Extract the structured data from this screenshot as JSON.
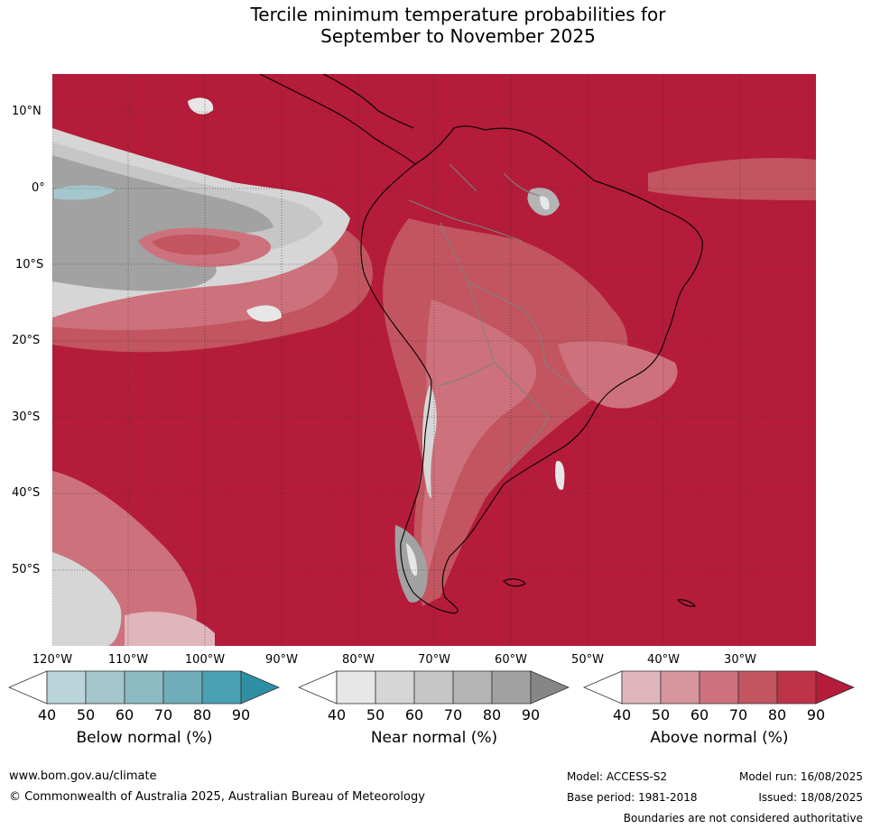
{
  "title_line1": "Tercile minimum temperature probabilities for",
  "title_line2": "September to November 2025",
  "colors": {
    "above": [
      "#dfb6bb",
      "#d7959d",
      "#cd727d",
      "#c2555f",
      "#bd3347",
      "#b41c3a"
    ],
    "near": [
      "#e7e7e7",
      "#d6d6d6",
      "#c6c6c6",
      "#b4b4b4",
      "#a2a2a2",
      "#868686"
    ],
    "below": [
      "#bad5da",
      "#a5c6cc",
      "#8cbac2",
      "#6fadb9",
      "#4aa1b3",
      "#2e8fa4"
    ],
    "land_outline": "#000000",
    "border_outline": "#808080"
  },
  "lat_ticks": [
    "10°N",
    "0°",
    "10°S",
    "20°S",
    "30°S",
    "40°S",
    "50°S"
  ],
  "lon_ticks": [
    "120°W",
    "110°W",
    "100°W",
    "90°W",
    "80°W",
    "70°W",
    "60°W",
    "50°W",
    "40°W",
    "30°W"
  ],
  "colorbar_ticks": [
    "40",
    "50",
    "60",
    "70",
    "80",
    "90"
  ],
  "colorbars": {
    "below_label": "Below normal (%)",
    "near_label": "Near normal (%)",
    "above_label": "Above normal (%)"
  },
  "footer": {
    "url": "www.bom.gov.au/climate",
    "copyright": "© Commonwealth of Australia 2025, Australian Bureau of Meteorology",
    "model": "Model: ACCESS-S2",
    "model_run": "Model run: 16/08/2025",
    "base_period": "Base period: 1981-2018",
    "issued": "Issued: 18/08/2025",
    "disclaimer": "Boundaries are not considered authoritative"
  }
}
